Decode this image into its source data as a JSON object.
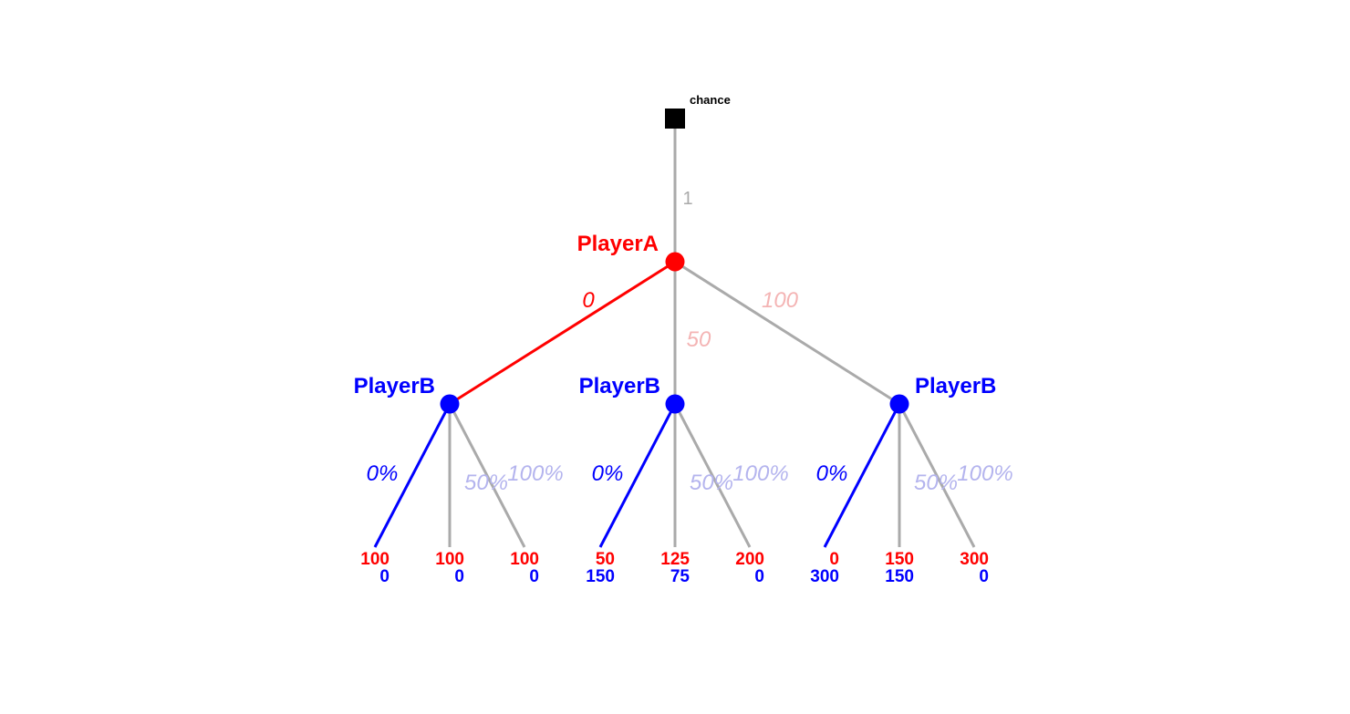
{
  "colors": {
    "playerA": "#ff0000",
    "playerB": "#0000ff",
    "playerA_faded": "#f4b4b4",
    "playerB_faded": "#b4b4ee",
    "edge_gray": "#aaaaaa",
    "chance": "#000000"
  },
  "chance": {
    "label": "chance",
    "probability": "1"
  },
  "playerA": {
    "label": "PlayerA",
    "moves": [
      {
        "label": "0",
        "chosen": true
      },
      {
        "label": "50",
        "chosen": false
      },
      {
        "label": "100",
        "chosen": false
      }
    ]
  },
  "playerB_nodes": [
    {
      "label": "PlayerB",
      "moves": [
        {
          "label": "0%",
          "chosen": true
        },
        {
          "label": "50%",
          "chosen": false
        },
        {
          "label": "100%",
          "chosen": false
        }
      ],
      "payoffs": [
        {
          "a": "100",
          "b": "0"
        },
        {
          "a": "100",
          "b": "0"
        },
        {
          "a": "100",
          "b": "0"
        }
      ]
    },
    {
      "label": "PlayerB",
      "moves": [
        {
          "label": "0%",
          "chosen": true
        },
        {
          "label": "50%",
          "chosen": false
        },
        {
          "label": "100%",
          "chosen": false
        }
      ],
      "payoffs": [
        {
          "a": "50",
          "b": "150"
        },
        {
          "a": "125",
          "b": "75"
        },
        {
          "a": "200",
          "b": "0"
        }
      ]
    },
    {
      "label": "PlayerB",
      "moves": [
        {
          "label": "0%",
          "chosen": true
        },
        {
          "label": "50%",
          "chosen": false
        },
        {
          "label": "100%",
          "chosen": false
        }
      ],
      "payoffs": [
        {
          "a": "0",
          "b": "300"
        },
        {
          "a": "150",
          "b": "150"
        },
        {
          "a": "300",
          "b": "0"
        }
      ]
    }
  ]
}
